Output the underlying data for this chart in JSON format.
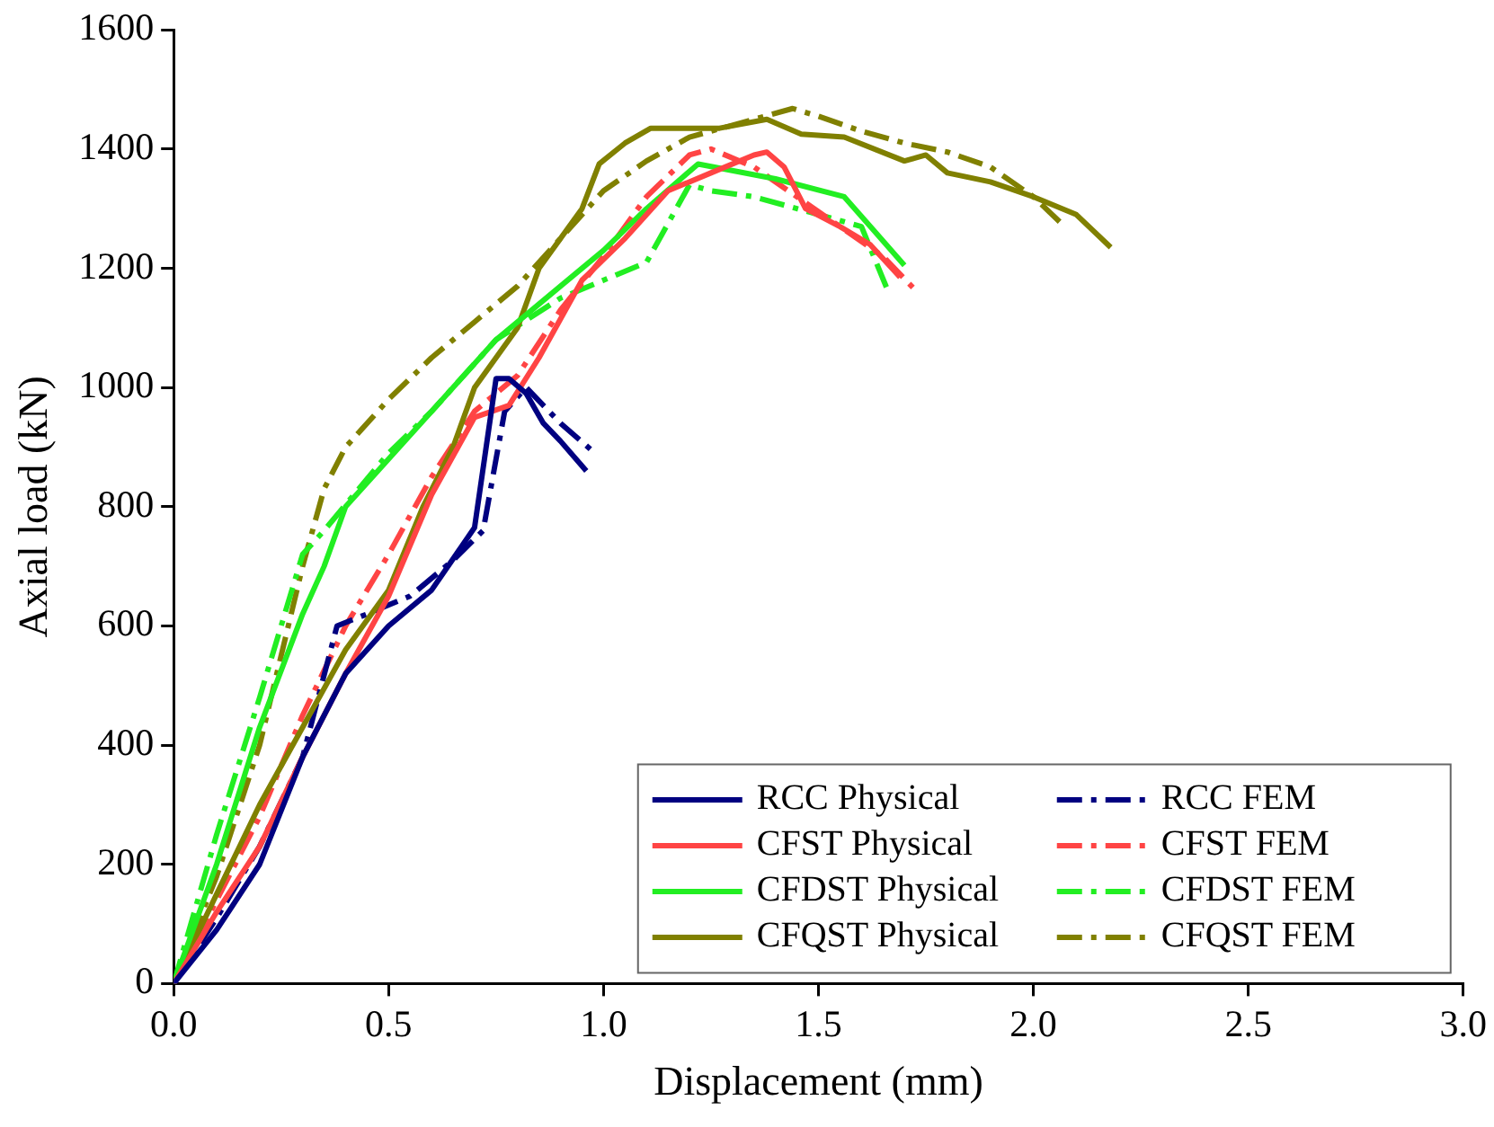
{
  "chart_data": {
    "type": "line",
    "xlabel": "Displacement (mm)",
    "ylabel": "Axial load (kN)",
    "xlim": [
      0,
      3.0
    ],
    "xticks": [
      {
        "value": 0,
        "label": "0.0"
      },
      0.5,
      {
        "value": 1,
        "label": "1.0"
      },
      1.5,
      {
        "value": 2,
        "label": "2.0"
      },
      2.5,
      {
        "value": 3,
        "label": "3.0"
      }
    ],
    "ylim": [
      0,
      1600
    ],
    "yticks": [
      0,
      200,
      400,
      600,
      800,
      1000,
      1200,
      1400,
      1600
    ],
    "grid": false,
    "legend": "bottom right",
    "marker": "none",
    "series": [
      {
        "name": "RCC Physical",
        "color": "#000080",
        "line_style": "solid",
        "x": [
          0,
          0.1,
          0.2,
          0.3,
          0.4,
          0.5,
          0.6,
          0.7,
          0.75,
          0.78,
          0.82,
          0.86,
          0.9,
          0.96
        ],
        "values": [
          0,
          90,
          200,
          380,
          520,
          600,
          660,
          765,
          1015,
          1015,
          990,
          940,
          910,
          860
        ]
      },
      {
        "name": "CFST Physical",
        "color": "#ff4444",
        "line_style": "solid",
        "x": [
          0,
          0.1,
          0.2,
          0.3,
          0.4,
          0.5,
          0.6,
          0.7,
          0.78,
          0.85,
          0.95,
          1.05,
          1.15,
          1.25,
          1.35,
          1.38,
          1.42,
          1.47,
          1.55,
          1.62,
          1.69
        ],
        "values": [
          0,
          120,
          230,
          380,
          520,
          650,
          820,
          950,
          970,
          1050,
          1180,
          1250,
          1330,
          1360,
          1390,
          1395,
          1370,
          1300,
          1270,
          1240,
          1185
        ]
      },
      {
        "name": "CFDST Physical",
        "color": "#22ee22",
        "line_style": "solid",
        "x": [
          0,
          0.1,
          0.2,
          0.3,
          0.35,
          0.4,
          0.5,
          0.6,
          0.75,
          0.9,
          1.0,
          1.1,
          1.22,
          1.4,
          1.56,
          1.7
        ],
        "values": [
          0,
          200,
          430,
          620,
          700,
          800,
          880,
          960,
          1080,
          1170,
          1230,
          1300,
          1375,
          1350,
          1320,
          1205
        ]
      },
      {
        "name": "CFQST Physical",
        "color": "#808000",
        "line_style": "solid",
        "x": [
          0,
          0.1,
          0.2,
          0.3,
          0.4,
          0.5,
          0.58,
          0.65,
          0.7,
          0.8,
          0.85,
          0.95,
          0.99,
          1.05,
          1.11,
          1.27,
          1.38,
          1.46,
          1.56,
          1.7,
          1.75,
          1.8,
          1.9,
          2.0,
          2.1,
          2.18
        ],
        "values": [
          0,
          150,
          300,
          430,
          560,
          660,
          800,
          900,
          1000,
          1100,
          1200,
          1300,
          1375,
          1410,
          1435,
          1435,
          1450,
          1425,
          1420,
          1380,
          1390,
          1360,
          1345,
          1320,
          1290,
          1235
        ]
      },
      {
        "name": "RCC FEM",
        "color": "#000080",
        "line_style": "dashdot",
        "x": [
          0,
          0.1,
          0.2,
          0.3,
          0.38,
          0.45,
          0.55,
          0.65,
          0.72,
          0.77,
          0.82,
          0.9,
          0.98
        ],
        "values": [
          0,
          110,
          230,
          380,
          600,
          620,
          650,
          710,
          760,
          960,
          1000,
          940,
          890
        ]
      },
      {
        "name": "CFST FEM",
        "color": "#ff4444",
        "line_style": "dashdot",
        "x": [
          0,
          0.1,
          0.2,
          0.3,
          0.4,
          0.5,
          0.6,
          0.7,
          0.8,
          0.9,
          1.0,
          1.1,
          1.2,
          1.25,
          1.35,
          1.45,
          1.55,
          1.65,
          1.73
        ],
        "values": [
          0,
          140,
          280,
          450,
          600,
          720,
          850,
          960,
          1020,
          1130,
          1220,
          1320,
          1390,
          1400,
          1370,
          1320,
          1270,
          1220,
          1160
        ]
      },
      {
        "name": "CFDST FEM",
        "color": "#22ee22",
        "line_style": "dashdot",
        "x": [
          0,
          0.1,
          0.2,
          0.3,
          0.35,
          0.5,
          0.6,
          0.75,
          0.9,
          1.0,
          1.1,
          1.2,
          1.25,
          1.35,
          1.45,
          1.6,
          1.66
        ],
        "values": [
          0,
          250,
          480,
          720,
          760,
          890,
          960,
          1080,
          1150,
          1180,
          1210,
          1340,
          1330,
          1320,
          1300,
          1270,
          1165
        ]
      },
      {
        "name": "CFQST FEM",
        "color": "#808000",
        "line_style": "dashdot",
        "x": [
          0,
          0.1,
          0.2,
          0.3,
          0.35,
          0.4,
          0.5,
          0.6,
          0.7,
          0.8,
          0.9,
          1.0,
          1.1,
          1.2,
          1.3,
          1.44,
          1.5,
          1.6,
          1.7,
          1.8,
          1.9,
          2.0,
          2.07
        ],
        "values": [
          0,
          180,
          400,
          700,
          830,
          900,
          980,
          1050,
          1110,
          1170,
          1250,
          1330,
          1380,
          1420,
          1440,
          1468,
          1455,
          1430,
          1410,
          1395,
          1370,
          1320,
          1272
        ]
      }
    ]
  }
}
